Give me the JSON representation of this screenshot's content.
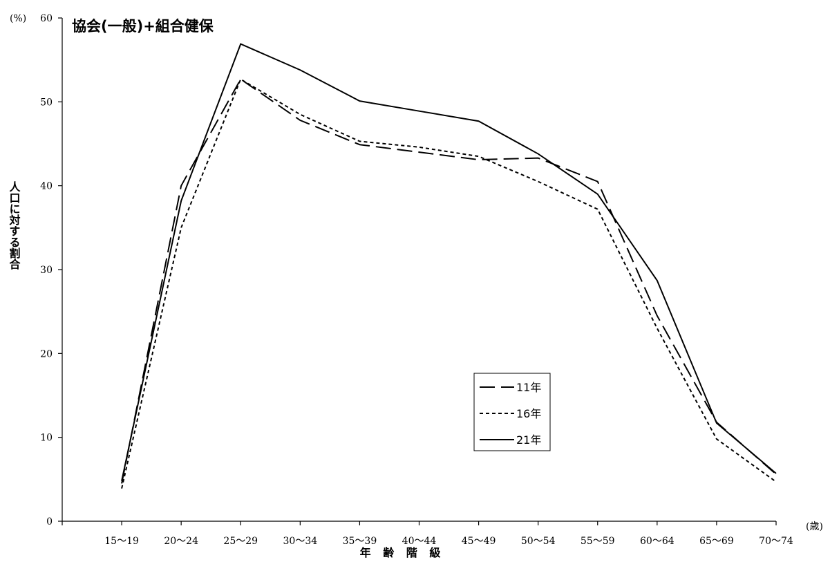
{
  "chart_data": {
    "type": "line",
    "title": "協会(一般)+組合健保",
    "xlabel": "年 齢 階 級",
    "ylabel": "人口に対する割合",
    "y_unit": "(%)",
    "x_unit": "(歳)",
    "ylim": [
      0,
      60
    ],
    "yticks": [
      0,
      10,
      20,
      30,
      40,
      50,
      60
    ],
    "grid": false,
    "legend_position": "center-right",
    "categories": [
      "15〜19",
      "20〜24",
      "25〜29",
      "30〜34",
      "35〜39",
      "40〜44",
      "45〜49",
      "50〜54",
      "55〜59",
      "60〜64",
      "65〜69",
      "70〜74"
    ],
    "series": [
      {
        "name": "11年",
        "dash": "long-dash",
        "values": [
          4.5,
          40.0,
          52.7,
          47.8,
          44.9,
          44.0,
          43.1,
          43.3,
          40.5,
          24.5,
          11.8,
          5.6
        ]
      },
      {
        "name": "16年",
        "dash": "short-dash",
        "values": [
          3.9,
          35.0,
          52.7,
          48.5,
          45.3,
          44.6,
          43.5,
          40.5,
          37.2,
          23.0,
          9.8,
          4.7
        ]
      },
      {
        "name": "21年",
        "dash": "solid",
        "values": [
          4.8,
          38.2,
          56.9,
          53.8,
          50.1,
          48.9,
          47.7,
          43.8,
          39.0,
          28.7,
          11.7,
          5.7
        ]
      }
    ]
  }
}
